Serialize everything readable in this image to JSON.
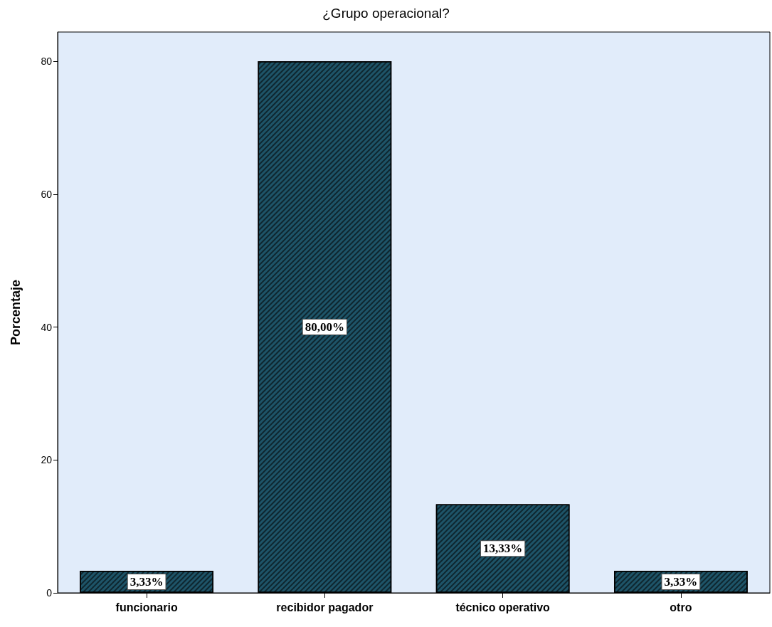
{
  "chart_data": {
    "type": "bar",
    "title": "¿Grupo operacional?",
    "ylabel": "Porcentaje",
    "categories": [
      "funcionario",
      "recibidor pagador",
      "técnico operativo",
      "otro"
    ],
    "values": [
      3.33,
      80,
      13.33,
      3.33
    ],
    "value_labels": [
      "3,33%",
      "80,00%",
      "13,33%",
      "3,33%"
    ],
    "color": "#1e5468",
    "ylim": [
      0,
      84.4
    ],
    "yticks": [
      0,
      20,
      40,
      60,
      80
    ],
    "grid": false
  }
}
